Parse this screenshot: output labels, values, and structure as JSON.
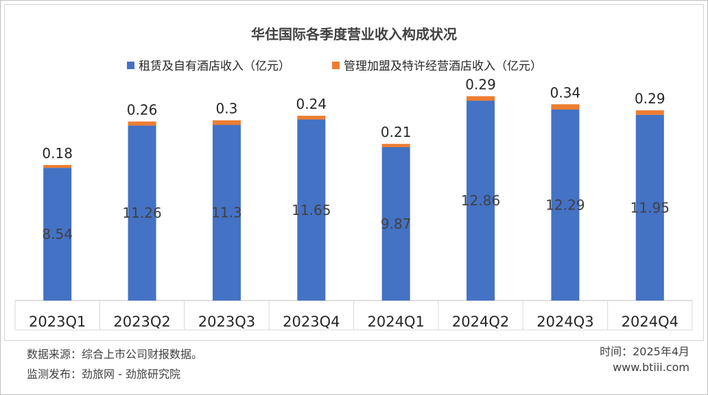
{
  "chart_data": {
    "type": "bar",
    "stacked": true,
    "title": "华住国际各季度营业收入构成状况",
    "categories": [
      "2023Q1",
      "2023Q2",
      "2023Q3",
      "2023Q4",
      "2024Q1",
      "2024Q2",
      "2024Q3",
      "2024Q4"
    ],
    "series": [
      {
        "name": "租赁及自有酒店收入（亿元）",
        "color": "#4472C4",
        "values": [
          8.54,
          11.26,
          11.3,
          11.65,
          9.87,
          12.86,
          12.29,
          11.95
        ],
        "labels": [
          "8.54",
          "11.26",
          "11.3",
          "11.65",
          "9.87",
          "12.86",
          "12.29",
          "11.95"
        ]
      },
      {
        "name": "管理加盟及特许经营酒店收入（亿元）",
        "color": "#ED7D31",
        "values": [
          0.18,
          0.26,
          0.3,
          0.24,
          0.21,
          0.29,
          0.34,
          0.29
        ],
        "labels": [
          "0.18",
          "0.26",
          "0.3",
          "0.24",
          "0.21",
          "0.29",
          "0.34",
          "0.29"
        ]
      }
    ],
    "ylim": [
      0,
      14
    ],
    "grid": false,
    "legend": "top-center",
    "xlabel": "",
    "ylabel": ""
  },
  "footer": {
    "source": "数据来源：综合上市公司财报数据。",
    "publisher": "监测发布：劲旅网 - 劲旅研究院",
    "date": "时间：2025年4月",
    "url": "www.btiii.com"
  }
}
